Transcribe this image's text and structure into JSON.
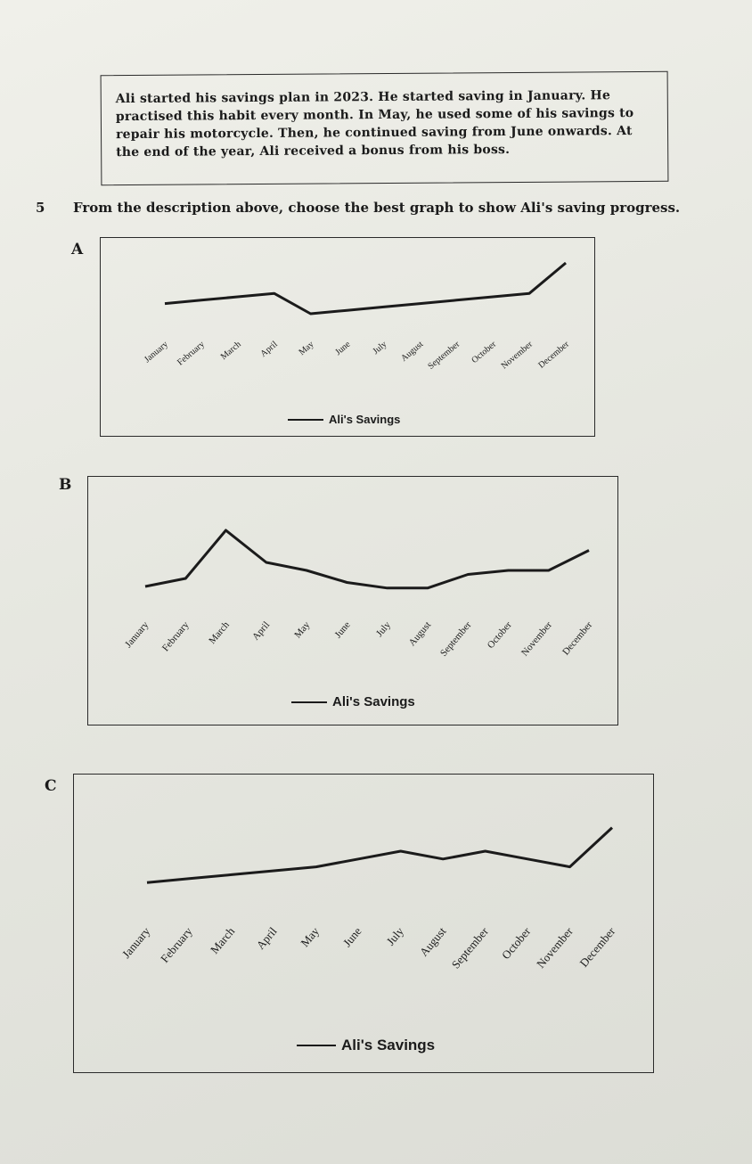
{
  "passage": {
    "text": "Ali started his savings plan in 2023. He started saving in January. He practised this habit every month. In May, he used some of his savings to repair his motorcycle. Then, he continued saving from June onwards. At the end of the year, Ali received a bonus from his boss."
  },
  "question": {
    "number": "5",
    "text": "From the description above, choose the best graph to show Ali's saving progress."
  },
  "months": [
    "January",
    "February",
    "March",
    "April",
    "May",
    "June",
    "July",
    "August",
    "September",
    "October",
    "November",
    "December"
  ],
  "chart_data": [
    {
      "type": "line",
      "option": "A",
      "categories": [
        "January",
        "February",
        "March",
        "April",
        "May",
        "June",
        "July",
        "August",
        "September",
        "October",
        "November",
        "December"
      ],
      "series": [
        {
          "name": "Ali's Savings",
          "values": [
            4,
            4.5,
            5,
            5.5,
            2.5,
            3,
            3.5,
            4,
            4.5,
            5,
            5.5,
            10
          ]
        }
      ],
      "legend": "bottom-center",
      "grid": false
    },
    {
      "type": "line",
      "option": "B",
      "categories": [
        "January",
        "February",
        "March",
        "April",
        "May",
        "June",
        "July",
        "August",
        "September",
        "October",
        "November",
        "December"
      ],
      "series": [
        {
          "name": "Ali's Savings",
          "values": [
            3,
            4,
            10,
            6,
            5,
            3.5,
            2.8,
            2.8,
            4.5,
            5,
            5,
            7.5
          ]
        }
      ],
      "legend": "bottom-center",
      "grid": false
    },
    {
      "type": "line",
      "option": "C",
      "categories": [
        "January",
        "February",
        "March",
        "April",
        "May",
        "June",
        "July",
        "August",
        "September",
        "October",
        "November",
        "December"
      ],
      "series": [
        {
          "name": "Ali's Savings",
          "values": [
            1,
            1.5,
            2,
            2.5,
            3,
            4,
            5,
            4,
            5,
            4,
            3,
            8
          ]
        }
      ],
      "legend": "bottom-center",
      "grid": false
    }
  ]
}
